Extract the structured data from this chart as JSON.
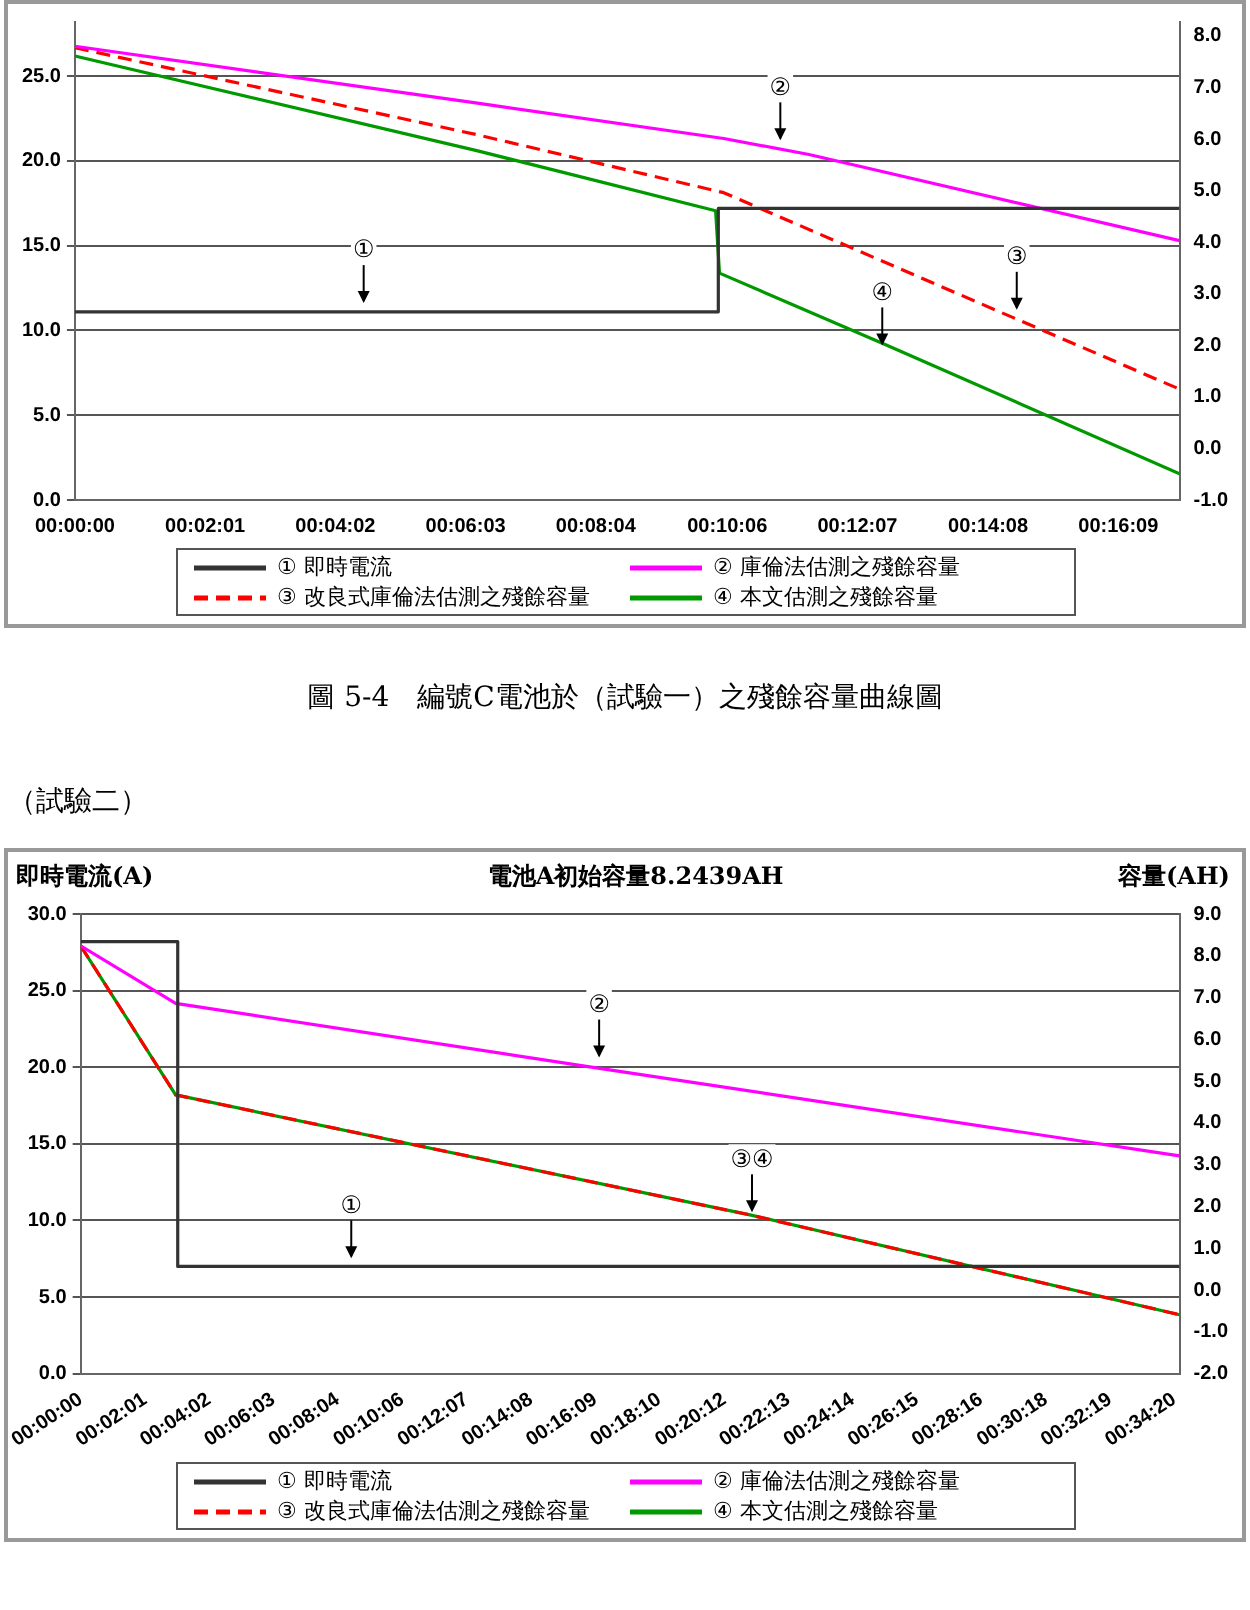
{
  "chart_data": [
    {
      "type": "line",
      "marker": "none",
      "grid": "y",
      "legend": "bottom",
      "xlim": [
        0,
        0.285
      ],
      "xticks": [
        {
          "value": 0,
          "label": "00:00:00"
        },
        {
          "value": 0.0336,
          "label": "00:02:01"
        },
        {
          "value": 0.0672,
          "label": "00:04:02"
        },
        {
          "value": 0.1008,
          "label": "00:06:03"
        },
        {
          "value": 0.1344,
          "label": "00:08:04"
        },
        {
          "value": 0.1683,
          "label": "00:10:06"
        },
        {
          "value": 0.2019,
          "label": "00:12:07"
        },
        {
          "value": 0.2356,
          "label": "00:14:08"
        },
        {
          "value": 0.2692,
          "label": "00:16:09"
        }
      ],
      "ylim": [
        0,
        28.2
      ],
      "yticks": [
        {
          "value": 0,
          "label": "0.0"
        },
        {
          "value": 5,
          "label": "5.0"
        },
        {
          "value": 10,
          "label": "10.0"
        },
        {
          "value": 15,
          "label": "15.0"
        },
        {
          "value": 20,
          "label": "20.0"
        },
        {
          "value": 25,
          "label": "25.0"
        }
      ],
      "y2lim": [
        -1,
        8.27
      ],
      "y2ticks": [
        {
          "value": -1,
          "label": "-1.0"
        },
        {
          "value": 0,
          "label": "0.0"
        },
        {
          "value": 1,
          "label": "1.0"
        },
        {
          "value": 2,
          "label": "2.0"
        },
        {
          "value": 3,
          "label": "3.0"
        },
        {
          "value": 4,
          "label": "4.0"
        },
        {
          "value": 5,
          "label": "5.0"
        },
        {
          "value": 6,
          "label": "6.0"
        },
        {
          "value": 7,
          "label": "7.0"
        },
        {
          "value": 8,
          "label": "8.0"
        }
      ],
      "series": [
        {
          "name": "① 即時電流",
          "color": "#333333",
          "x": [
            0,
            0.166,
            0.166,
            0.285
          ],
          "values": [
            11.1,
            11.1,
            17.2,
            17.2
          ]
        },
        {
          "name": "② 庫倫法估測之殘餘容量",
          "color": "#ff00ff",
          "axis": "y2",
          "x": [
            0,
            0.1034,
            0.1674,
            0.1894,
            0.285
          ],
          "values": [
            7.8,
            6.7,
            6.01,
            5.7,
            4.03
          ]
        },
        {
          "name": "③ 改良式庫倫法估測之殘餘容量",
          "color": "#ff0000",
          "axis": "y2",
          "line_style": "dashed",
          "x": [
            0,
            0.1034,
            0.1674,
            0.2429,
            0.285
          ],
          "values": [
            7.77,
            6.09,
            4.96,
            2.51,
            1.15
          ]
        },
        {
          "name": "④ 本文估測之殘餘容量",
          "color": "#009900",
          "axis": "y2",
          "x": [
            0,
            0.1034,
            0.1653,
            0.1663,
            0.2083,
            0.285
          ],
          "values": [
            7.61,
            5.78,
            4.61,
            3.4,
            2.04,
            -0.49
          ]
        }
      ],
      "annotations": [
        {
          "text": "①",
          "x": 0.0745,
          "y": 11.5
        },
        {
          "text": "②",
          "x": 0.182,
          "y": 21.1
        },
        {
          "text": "③",
          "x": 0.243,
          "y": 11.1
        },
        {
          "text": "④",
          "x": 0.2083,
          "y": 9
        },
        "圖 5-4　編號C電池於（試驗一）之殘餘容量曲線圖"
      ]
    },
    {
      "type": "line",
      "marker": "none",
      "grid": "y",
      "legend": "bottom",
      "title": "電池A初始容量8.2439AH",
      "ylabel": "即時電流(A)",
      "y2label": "容量(AH)",
      "xlim": [
        0,
        0.575
      ],
      "xticks": [
        {
          "value": 0,
          "label": "00:00:00"
        },
        {
          "value": 0.0336,
          "label": "00:02:01"
        },
        {
          "value": 0.0672,
          "label": "00:04:02"
        },
        {
          "value": 0.1008,
          "label": "00:06:03"
        },
        {
          "value": 0.1344,
          "label": "00:08:04"
        },
        {
          "value": 0.1683,
          "label": "00:10:06"
        },
        {
          "value": 0.2019,
          "label": "00:12:07"
        },
        {
          "value": 0.2356,
          "label": "00:14:08"
        },
        {
          "value": 0.2692,
          "label": "00:16:09"
        },
        {
          "value": 0.3028,
          "label": "00:18:10"
        },
        {
          "value": 0.3367,
          "label": "00:20:12"
        },
        {
          "value": 0.3703,
          "label": "00:22:13"
        },
        {
          "value": 0.4039,
          "label": "00:24:14"
        },
        {
          "value": 0.4375,
          "label": "00:26:15"
        },
        {
          "value": 0.4711,
          "label": "00:28:16"
        },
        {
          "value": 0.505,
          "label": "00:30:18"
        },
        {
          "value": 0.5386,
          "label": "00:32:19"
        },
        {
          "value": 0.5722,
          "label": "00:34:20"
        }
      ],
      "ylim": [
        0,
        30
      ],
      "yticks": [
        {
          "value": 0,
          "label": "0.0"
        },
        {
          "value": 5,
          "label": "5.0"
        },
        {
          "value": 10,
          "label": "10.0"
        },
        {
          "value": 15,
          "label": "15.0"
        },
        {
          "value": 20,
          "label": "20.0"
        },
        {
          "value": 25,
          "label": "25.0"
        },
        {
          "value": 30,
          "label": "30.0"
        }
      ],
      "y2lim": [
        -2,
        9
      ],
      "y2ticks": [
        {
          "value": -2,
          "label": "-2.0"
        },
        {
          "value": -1,
          "label": "-1.0"
        },
        {
          "value": 0,
          "label": "0.0"
        },
        {
          "value": 1,
          "label": "1.0"
        },
        {
          "value": 2,
          "label": "2.0"
        },
        {
          "value": 3,
          "label": "3.0"
        },
        {
          "value": 4,
          "label": "4.0"
        },
        {
          "value": 5,
          "label": "5.0"
        },
        {
          "value": 6,
          "label": "6.0"
        },
        {
          "value": 7,
          "label": "7.0"
        },
        {
          "value": 8,
          "label": "8.0"
        },
        {
          "value": 9,
          "label": "9.0"
        }
      ],
      "series": [
        {
          "name": "① 即時電流",
          "color": "#333333",
          "x": [
            0,
            0.0508,
            0.0508,
            0.575
          ],
          "values": [
            28.2,
            28.2,
            7,
            7
          ]
        },
        {
          "name": "② 庫倫法估測之殘餘容量",
          "color": "#ff00ff",
          "axis": "y2",
          "x": [
            0,
            0.0497,
            0.2724,
            0.575
          ],
          "values": [
            8.24,
            6.86,
            5.3,
            3.21
          ]
        },
        {
          "name": "③ 改良式庫倫法估測之殘餘容量",
          "color": "#ff0000",
          "axis": "y2",
          "line_style": "dashed",
          "x": [
            0,
            0.0497,
            0.3502,
            0.575
          ],
          "values": [
            8.24,
            4.67,
            1.8,
            -0.59
          ]
        },
        {
          "name": "④ 本文估測之殘餘容量",
          "color": "#009900",
          "axis": "y2",
          "x": [
            0,
            0.0497,
            0.3502,
            0.575
          ],
          "values": [
            8.24,
            4.67,
            1.8,
            -0.59
          ]
        }
      ],
      "annotations": [
        "（試驗二）",
        {
          "text": "①",
          "x": 0.1416,
          "y": 7.4
        },
        {
          "text": "②",
          "x": 0.2713,
          "y": 20.5
        },
        {
          "text": "③④",
          "x": 0.3513,
          "y": 10.4
        }
      ]
    }
  ]
}
